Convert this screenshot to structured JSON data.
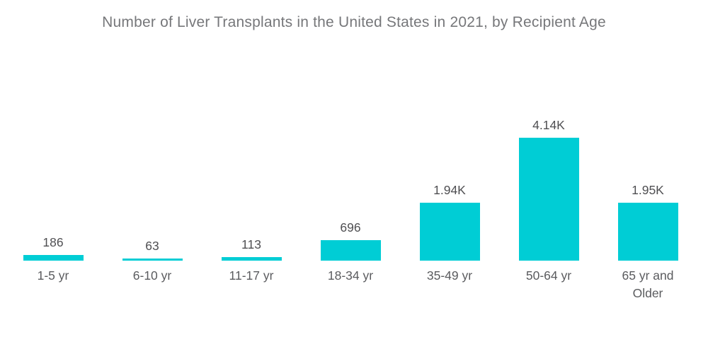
{
  "page": {
    "background_color": "#ffffff"
  },
  "chart": {
    "title_color": "#76777A",
    "bar_color": "#00CDD5",
    "value_label_color": "#4F4F52",
    "category_label_color": "#5A5B5E"
  },
  "chart_data": {
    "type": "bar",
    "title": "Number of Liver Transplants in the United States in 2021, by Recipient Age",
    "categories": [
      "1-5 yr",
      "6-10 yr",
      "11-17 yr",
      "18-34 yr",
      "35-49 yr",
      "50-64 yr",
      "65 yr and Older"
    ],
    "values": [
      186,
      63,
      113,
      696,
      1940,
      4140,
      1950
    ],
    "value_labels": [
      "186",
      "63",
      "113",
      "696",
      "1.94K",
      "4.14K",
      "1.95K"
    ],
    "xlabel": "",
    "ylabel": "",
    "ylim": [
      0,
      4140
    ],
    "grid": false,
    "legend": false,
    "orientation": "vertical",
    "axis_lines": false
  }
}
